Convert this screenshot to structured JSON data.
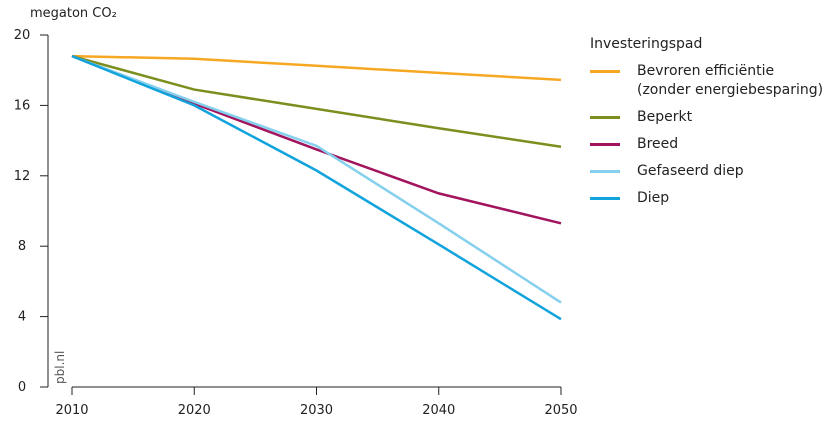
{
  "chart_data": {
    "type": "line",
    "y_label": "megaton CO₂",
    "legend_title": "Investeringspad",
    "watermark": "pbl.nl",
    "x": [
      2010,
      2020,
      2030,
      2040,
      2050
    ],
    "xlim": [
      2010,
      2050
    ],
    "xticks": [
      2010,
      2020,
      2030,
      2040,
      2050
    ],
    "ylim": [
      0,
      20
    ],
    "yticks": [
      0,
      4,
      8,
      12,
      16,
      20
    ],
    "grid": false,
    "legend": "right",
    "series": [
      {
        "name": "Bevroren efficiëntie (zonder energiebesparing)",
        "color": "#f7a823",
        "values": [
          18.8,
          18.65,
          18.25,
          17.85,
          17.45
        ]
      },
      {
        "name": "Beperkt",
        "color": "#7a8f1e",
        "values": [
          18.8,
          16.9,
          15.8,
          14.7,
          13.65
        ]
      },
      {
        "name": "Breed",
        "color": "#a3145e",
        "values": [
          18.8,
          16.1,
          13.5,
          11.0,
          9.3
        ]
      },
      {
        "name": "Gefaseerd diep",
        "color": "#85d0ec",
        "values": [
          18.8,
          16.2,
          13.7,
          9.3,
          4.8
        ]
      },
      {
        "name": "Diep",
        "color": "#10a3dc",
        "values": [
          18.8,
          16.0,
          12.3,
          8.1,
          3.85
        ]
      }
    ]
  }
}
